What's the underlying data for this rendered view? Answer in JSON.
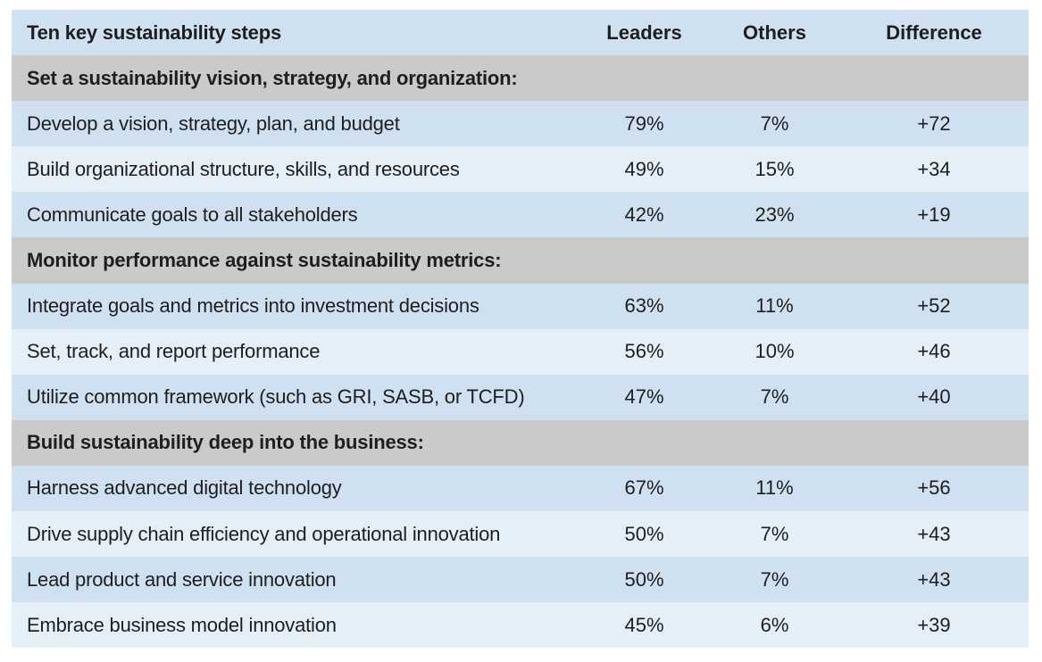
{
  "table": {
    "headers": {
      "step": "Ten key sustainability steps",
      "leaders": "Leaders",
      "others": "Others",
      "difference": "Difference"
    },
    "sections": [
      {
        "title": "Set a sustainability vision, strategy, and organization:",
        "rows": [
          {
            "step": "Develop a vision, strategy, plan, and budget",
            "leaders": "79%",
            "others": "7%",
            "difference": "+72"
          },
          {
            "step": "Build organizational structure, skills, and resources",
            "leaders": "49%",
            "others": "15%",
            "difference": "+34"
          },
          {
            "step": "Communicate goals to all stakeholders",
            "leaders": "42%",
            "others": "23%",
            "difference": "+19"
          }
        ]
      },
      {
        "title": "Monitor performance against sustainability metrics:",
        "rows": [
          {
            "step": "Integrate goals and metrics into investment decisions",
            "leaders": "63%",
            "others": "11%",
            "difference": "+52"
          },
          {
            "step": "Set, track, and report performance",
            "leaders": "56%",
            "others": "10%",
            "difference": "+46"
          },
          {
            "step": "Utilize common framework (such as GRI, SASB, or TCFD)",
            "leaders": "47%",
            "others": "7%",
            "difference": "+40"
          }
        ]
      },
      {
        "title": "Build sustainability deep into the business:",
        "rows": [
          {
            "step": "Harness advanced digital technology",
            "leaders": "67%",
            "others": "11%",
            "difference": "+56"
          },
          {
            "step": "Drive supply chain efficiency and operational innovation",
            "leaders": "50%",
            "others": "7%",
            "difference": "+43"
          },
          {
            "step": "Lead product and service innovation",
            "leaders": "50%",
            "others": "7%",
            "difference": "+43"
          },
          {
            "step": "Embrace business model innovation",
            "leaders": "45%",
            "others": "6%",
            "difference": "+39"
          }
        ]
      }
    ]
  },
  "colors": {
    "header_bg": "#cfe0f0",
    "section_bg": "#cacbc8",
    "row_dark_bg": "#cfe0f0",
    "row_light_bg": "#e5eff8",
    "text": "#1e1e1e"
  }
}
